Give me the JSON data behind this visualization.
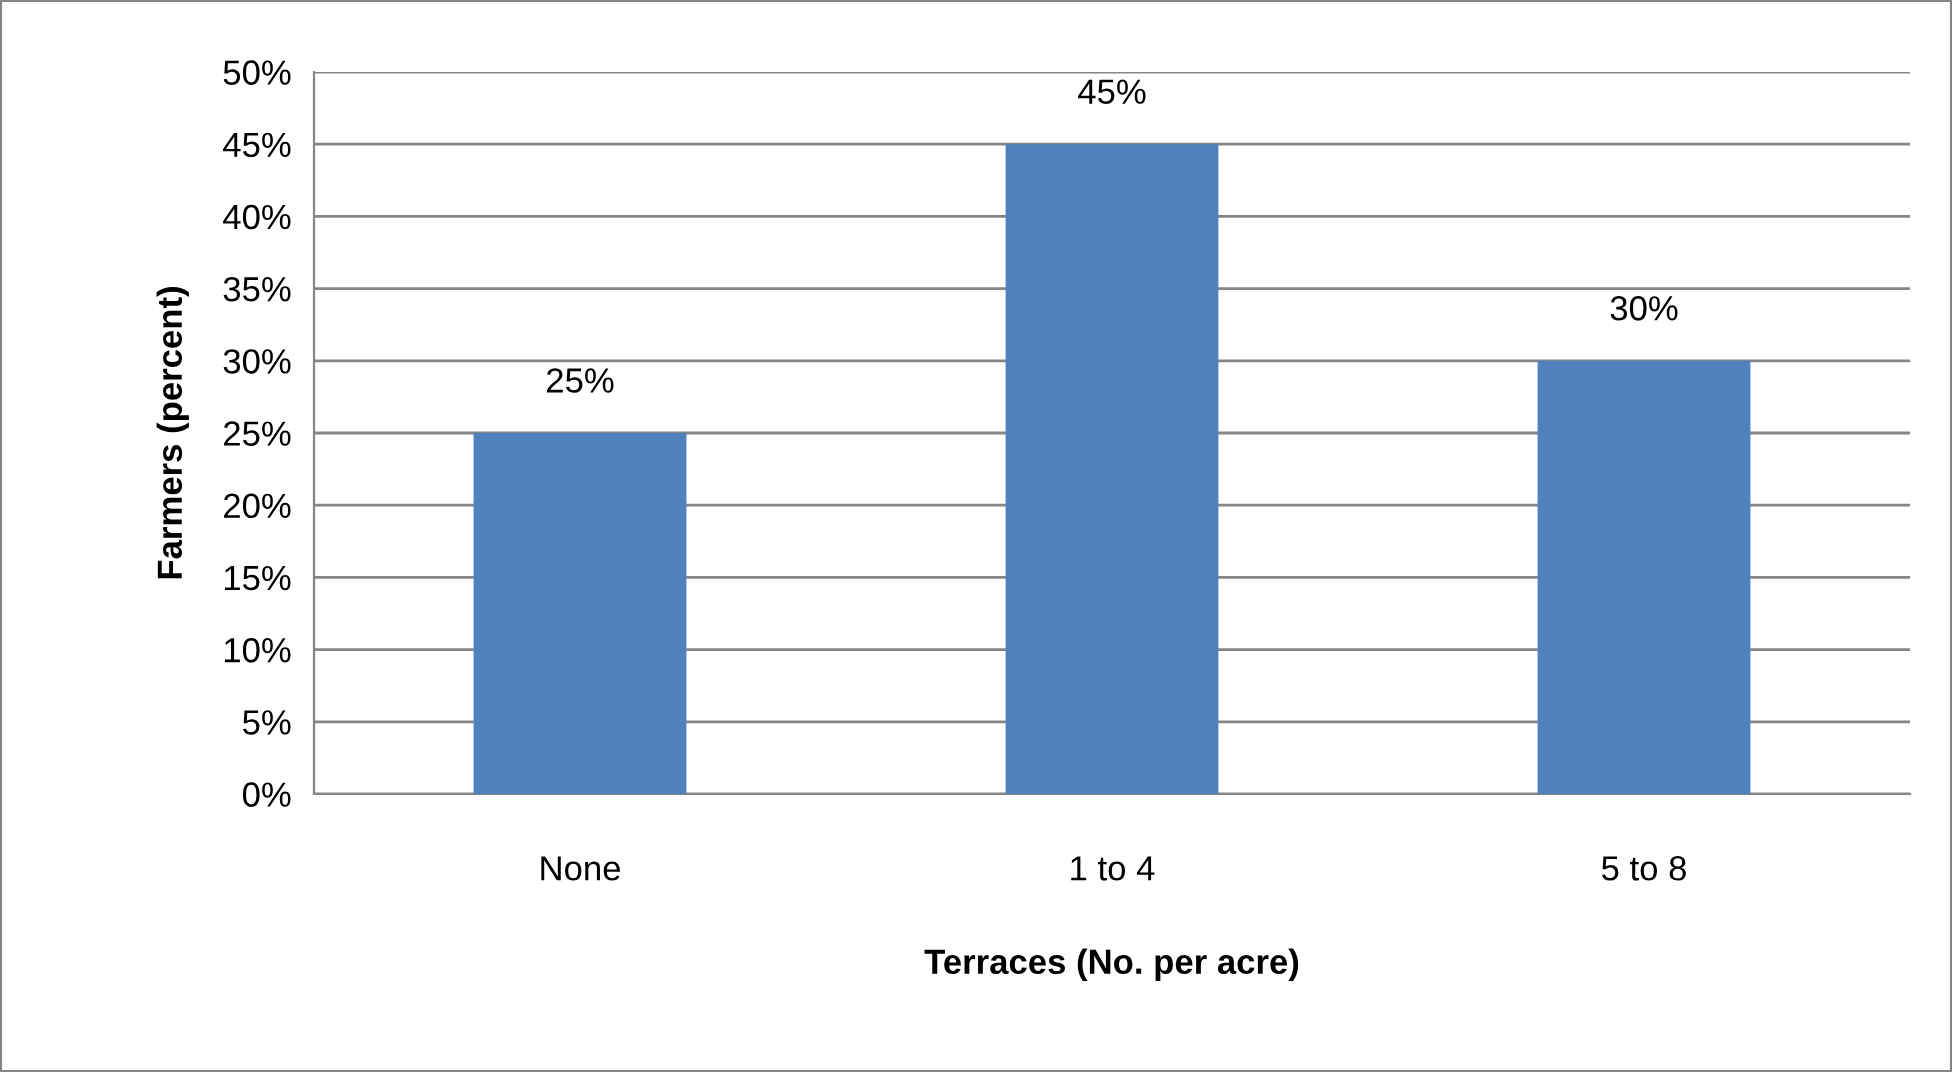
{
  "chart_data": {
    "type": "bar",
    "xlabel": "Terraces (No. per acre)",
    "ylabel": "Farmers (percent)",
    "categories": [
      "None",
      "1 to 4",
      "5 to 8"
    ],
    "values": [
      25,
      45,
      30
    ],
    "value_labels": [
      "25%",
      "45%",
      "30%"
    ],
    "color": "#4f81bd",
    "ylim": [
      0,
      50
    ],
    "yticks": [
      {
        "value": 0,
        "label": "0%"
      },
      {
        "value": 5,
        "label": "5%"
      },
      {
        "value": 10,
        "label": "10%"
      },
      {
        "value": 15,
        "label": "15%"
      },
      {
        "value": 20,
        "label": "20%"
      },
      {
        "value": 25,
        "label": "25%"
      },
      {
        "value": 30,
        "label": "30%"
      },
      {
        "value": 35,
        "label": "35%"
      },
      {
        "value": 40,
        "label": "40%"
      },
      {
        "value": 45,
        "label": "45%"
      },
      {
        "value": 50,
        "label": "50%"
      }
    ],
    "grid": "y",
    "legend": false
  }
}
